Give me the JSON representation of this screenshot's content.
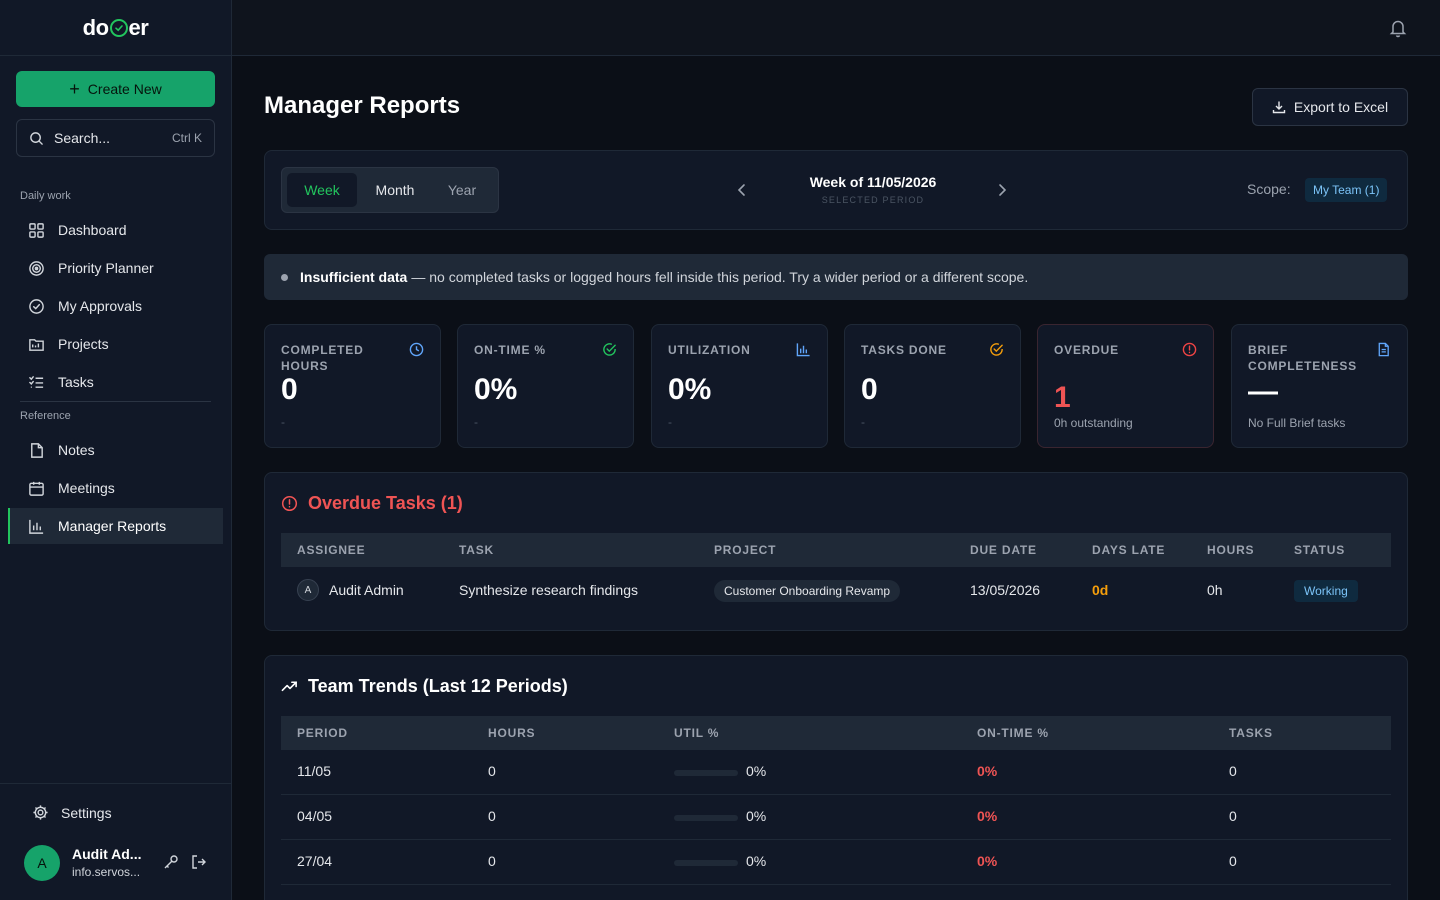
{
  "app": {
    "logo_left": "do",
    "logo_right": "er"
  },
  "sidebar": {
    "create_label": "Create New",
    "search_placeholder": "Search...",
    "search_shortcut": "Ctrl K",
    "section_daily": "Daily work",
    "section_reference": "Reference",
    "daily_items": [
      {
        "label": "Dashboard",
        "icon": "grid-icon"
      },
      {
        "label": "Priority Planner",
        "icon": "target-icon"
      },
      {
        "label": "My Approvals",
        "icon": "check-circle-icon"
      },
      {
        "label": "Projects",
        "icon": "folder-icon"
      },
      {
        "label": "Tasks",
        "icon": "list-check-icon"
      }
    ],
    "reference_items": [
      {
        "label": "Notes",
        "icon": "file-icon"
      },
      {
        "label": "Meetings",
        "icon": "calendar-icon"
      },
      {
        "label": "Manager Reports",
        "icon": "bar-chart-icon",
        "active": true
      }
    ],
    "settings_label": "Settings",
    "user": {
      "initial": "A",
      "name": "Audit Ad...",
      "email": "info.servos..."
    }
  },
  "page": {
    "title": "Manager Reports",
    "export_label": "Export to Excel"
  },
  "period": {
    "tabs": [
      "Week",
      "Month",
      "Year"
    ],
    "active_tab": "Week",
    "title": "Week of 11/05/2026",
    "subtitle": "SELECTED PERIOD",
    "scope_label": "Scope:",
    "scope_value": "My Team (1)"
  },
  "alert": {
    "strong": "Insufficient data",
    "text": "— no completed tasks or logged hours fell inside this period. Try a wider period or a different scope."
  },
  "kpis": [
    {
      "label": "COMPLETED HOURS",
      "value": "0",
      "sub": "-",
      "icon": "clock-icon",
      "color": "#60a5fa"
    },
    {
      "label": "ON-TIME %",
      "value": "0%",
      "sub": "-",
      "icon": "check-circle-icon",
      "color": "#22c55e"
    },
    {
      "label": "UTILIZATION",
      "value": "0%",
      "sub": "-",
      "icon": "bar-chart-icon",
      "color": "#60a5fa"
    },
    {
      "label": "TASKS DONE",
      "value": "0",
      "sub": "-",
      "icon": "check-circle-icon",
      "color": "#f59e0b"
    },
    {
      "label": "OVERDUE",
      "value": "1",
      "sub": "0h outstanding",
      "icon": "alert-circle-icon",
      "color": "#ef4444"
    },
    {
      "label": "BRIEF COMPLETENESS",
      "value": "—",
      "sub": "No Full Brief tasks",
      "icon": "document-icon",
      "color": "#60a5fa"
    }
  ],
  "overdue": {
    "title": "Overdue Tasks (1)",
    "headers": [
      "ASSIGNEE",
      "TASK",
      "PROJECT",
      "DUE DATE",
      "DAYS LATE",
      "HOURS",
      "STATUS"
    ],
    "rows": [
      {
        "initial": "A",
        "assignee": "Audit Admin",
        "task": "Synthesize research findings",
        "project": "Customer Onboarding Revamp",
        "due": "13/05/2026",
        "days_late": "0d",
        "hours": "0h",
        "status": "Working"
      }
    ]
  },
  "trends": {
    "title": "Team Trends (Last 12 Periods)",
    "headers": [
      "PERIOD",
      "HOURS",
      "UTIL %",
      "ON-TIME %",
      "TASKS"
    ],
    "rows": [
      {
        "period": "11/05",
        "hours": "0",
        "util": "0%",
        "util_fraction": 0,
        "ontime": "0%",
        "tasks": "0"
      },
      {
        "period": "04/05",
        "hours": "0",
        "util": "0%",
        "util_fraction": 0,
        "ontime": "0%",
        "tasks": "0"
      },
      {
        "period": "27/04",
        "hours": "0",
        "util": "0%",
        "util_fraction": 0,
        "ontime": "0%",
        "tasks": "0"
      }
    ]
  },
  "colors": {
    "accent": "#22c55e",
    "danger": "#ef5454",
    "warning": "#f59e0b",
    "info": "#7cc4f8"
  }
}
